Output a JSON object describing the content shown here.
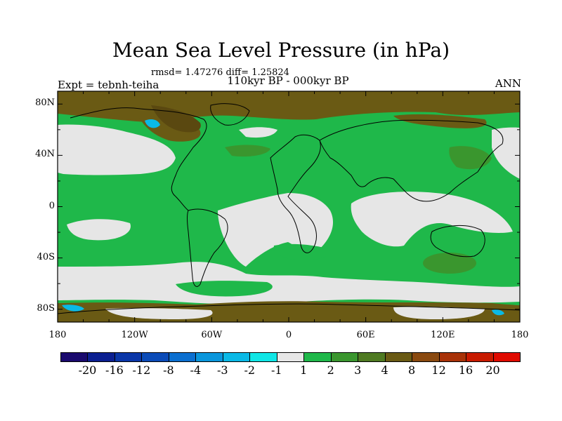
{
  "title": "Mean Sea Level Pressure (in hPa)",
  "stats": "rmsd= 1.47276 diff= 1.25824",
  "expt": "Expt = tebnh-teiha",
  "period": "110kyr BP - 000kyr BP",
  "season": "ANN",
  "lat_ticks": [
    "80N",
    "40N",
    "0",
    "40S",
    "80S"
  ],
  "lon_ticks": [
    "180",
    "120W",
    "60W",
    "0",
    "60E",
    "120E",
    "180"
  ],
  "colorbar": {
    "labels": [
      "-20",
      "-16",
      "-12",
      "-8",
      "-4",
      "-3",
      "-2",
      "-1",
      "1",
      "2",
      "3",
      "4",
      "8",
      "12",
      "16",
      "20"
    ],
    "colors": [
      "#1a0a6e",
      "#0b1f91",
      "#0a36a8",
      "#0b4bb8",
      "#0b6fd0",
      "#0a96dc",
      "#0ab9e6",
      "#10e6e6",
      "#e6e6e6",
      "#1fb84a",
      "#3a962e",
      "#4f7a22",
      "#6a5a14",
      "#8a4a10",
      "#a83208",
      "#c81a00",
      "#e00a00"
    ]
  },
  "chart_data": {
    "type": "heatmap",
    "title": "Mean Sea Level Pressure (in hPa)",
    "variable": "Mean Sea Level Pressure difference",
    "units": "hPa",
    "experiment": "tebnh-teiha",
    "period": "110kyr BP - 000kyr BP",
    "season": "ANN",
    "rmsd": 1.47276,
    "diff": 1.25824,
    "xlim": [
      -180,
      180
    ],
    "ylim": [
      -90,
      90
    ],
    "levels": [
      -20,
      -16,
      -12,
      -8,
      -4,
      -3,
      -2,
      -1,
      1,
      2,
      3,
      4,
      8,
      12,
      16,
      20
    ],
    "regions": [
      {
        "lon": [
          -180,
          180
        ],
        "lat": [
          -90,
          90
        ],
        "level": "1 to 2"
      },
      {
        "lon": [
          -180,
          180
        ],
        "lat": [
          70,
          90
        ],
        "level": "3 to 4"
      },
      {
        "lon": [
          -115,
          -60
        ],
        "lat": [
          55,
          85
        ],
        "level": "4 to 8"
      },
      {
        "lon": [
          -180,
          -115
        ],
        "lat": [
          20,
          50
        ],
        "level": "-1 to 1"
      },
      {
        "lon": [
          -55,
          20
        ],
        "lat": [
          -10,
          10
        ],
        "level": "-1 to 1"
      },
      {
        "lon": [
          -50,
          60
        ],
        "lat": [
          -40,
          -10
        ],
        "level": "-1 to 1"
      },
      {
        "lon": [
          40,
          180
        ],
        "lat": [
          -20,
          10
        ],
        "level": "-1 to 1"
      },
      {
        "lon": [
          -180,
          180
        ],
        "lat": [
          -70,
          -45
        ],
        "level": "-1 to 1"
      },
      {
        "lon": [
          -165,
          -130
        ],
        "lat": [
          -20,
          -35
        ],
        "level": "-1 to 1"
      },
      {
        "lon": [
          -95,
          -80
        ],
        "lat": [
          62,
          72
        ],
        "level": "-3 to -2"
      },
      {
        "lon": [
          -180,
          -160
        ],
        "lat": [
          -85,
          -90
        ],
        "level": "-3 to -2"
      },
      {
        "lon": [
          115,
          150
        ],
        "lat": [
          30,
          50
        ],
        "level": "3 to 4"
      },
      {
        "lon": [
          70,
          180
        ],
        "lat": [
          -45,
          -30
        ],
        "level": "3 to 4"
      },
      {
        "lon": [
          -180,
          180
        ],
        "lat": [
          -75,
          -85
        ],
        "level": "3 to 4"
      }
    ]
  }
}
